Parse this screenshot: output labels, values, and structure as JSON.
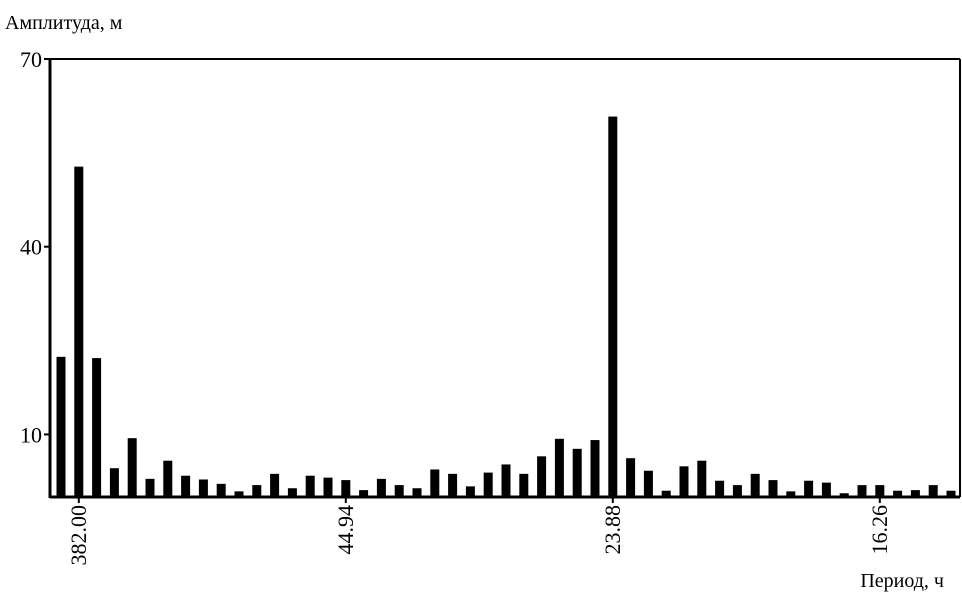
{
  "chart_data": {
    "type": "bar",
    "ylabel": "Амплитуда, м",
    "xlabel": "Период, ч",
    "ylim": [
      0,
      70
    ],
    "yticks": [
      10,
      40,
      70
    ],
    "xtick_labels": [
      {
        "bar_index": 1,
        "label": "382.00"
      },
      {
        "bar_index": 16,
        "label": "44.94"
      },
      {
        "bar_index": 31,
        "label": "23.88"
      },
      {
        "bar_index": 46,
        "label": "16.26"
      }
    ],
    "values": [
      22.4,
      52.8,
      22.2,
      4.6,
      9.4,
      2.9,
      5.8,
      3.4,
      2.8,
      2.1,
      0.9,
      1.9,
      3.7,
      1.4,
      3.4,
      3.1,
      2.7,
      1.1,
      2.9,
      1.9,
      1.4,
      4.4,
      3.7,
      1.7,
      3.9,
      5.2,
      3.7,
      6.5,
      9.3,
      7.7,
      9.1,
      60.8,
      6.2,
      4.2,
      1.0,
      4.9,
      5.8,
      2.6,
      1.9,
      3.7,
      2.7,
      0.9,
      2.6,
      2.3,
      0.6,
      1.9,
      1.9,
      1.0,
      1.1,
      1.9,
      1.0
    ],
    "grid": false,
    "bar_color": "#000000"
  }
}
